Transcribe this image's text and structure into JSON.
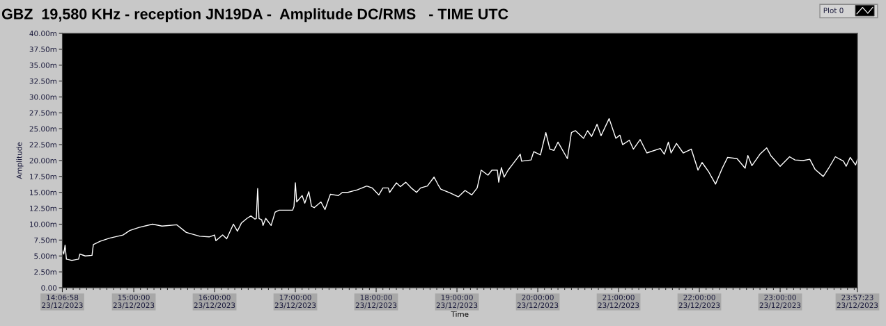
{
  "chart_data": {
    "type": "line",
    "title": "GBZ  19,580 KHz - reception JN19DA -  Amplitude DC/RMS   - TIME UTC",
    "xlabel": "Time",
    "ylabel": "Amplitude",
    "legend": "top right",
    "xlim": [
      "2023-12-23T14:06:58",
      "2023-12-23T23:57:23"
    ],
    "xticks": [
      {
        "value": "2023-12-23T14:06:58",
        "label": "14:06:58\n23/12/2023"
      },
      {
        "value": "2023-12-23T15:00",
        "label": "15:00:00\n23/12/2023"
      },
      {
        "value": "2023-12-23T16:00",
        "label": "16:00:00\n23/12/2023"
      },
      {
        "value": "2023-12-23T17:00",
        "label": "17:00:00\n23/12/2023"
      },
      {
        "value": "2023-12-23T18:00",
        "label": "18:00:00\n23/12/2023"
      },
      {
        "value": "2023-12-23T19:00",
        "label": "19:00:00\n23/12/2023"
      },
      {
        "value": "2023-12-23T20:00",
        "label": "20:00:00\n23/12/2023"
      },
      {
        "value": "2023-12-23T21:00",
        "label": "21:00:00\n23/12/2023"
      },
      {
        "value": "2023-12-23T22:00",
        "label": "22:00:00\n23/12/2023"
      },
      {
        "value": "2023-12-23T23:00",
        "label": "23:00:00\n23/12/2023"
      },
      {
        "value": "2023-12-23T23:57:23",
        "label": "23:57:23\n23/12/2023"
      },
      {
        "value": "2023-12-23T14:10",
        "label": null
      },
      {
        "value": "2023-12-23T14:15",
        "label": null
      },
      {
        "value": "2023-12-23T14:20",
        "label": null
      },
      {
        "value": "2023-12-23T14:25",
        "label": null
      },
      {
        "value": "2023-12-23T14:30",
        "label": null
      },
      {
        "value": "2023-12-23T14:35",
        "label": null
      },
      {
        "value": "2023-12-23T14:40",
        "label": null
      },
      {
        "value": "2023-12-23T14:45",
        "label": null
      },
      {
        "value": "2023-12-23T14:50",
        "label": null
      },
      {
        "value": "2023-12-23T14:55",
        "label": null
      },
      {
        "value": "2023-12-23T15:05",
        "label": null
      },
      {
        "value": "2023-12-23T15:10",
        "label": null
      },
      {
        "value": "2023-12-23T15:15",
        "label": null
      },
      {
        "value": "2023-12-23T15:20",
        "label": null
      },
      {
        "value": "2023-12-23T15:25",
        "label": null
      },
      {
        "value": "2023-12-23T15:30",
        "label": null
      },
      {
        "value": "2023-12-23T15:35",
        "label": null
      },
      {
        "value": "2023-12-23T15:40",
        "label": null
      },
      {
        "value": "2023-12-23T15:45",
        "label": null
      },
      {
        "value": "2023-12-23T15:50",
        "label": null
      },
      {
        "value": "2023-12-23T15:55",
        "label": null
      },
      {
        "value": "2023-12-23T16:05",
        "label": null
      },
      {
        "value": "2023-12-23T16:10",
        "label": null
      },
      {
        "value": "2023-12-23T16:15",
        "label": null
      },
      {
        "value": "2023-12-23T16:20",
        "label": null
      },
      {
        "value": "2023-12-23T16:25",
        "label": null
      },
      {
        "value": "2023-12-23T16:30",
        "label": null
      },
      {
        "value": "2023-12-23T16:35",
        "label": null
      },
      {
        "value": "2023-12-23T16:40",
        "label": null
      },
      {
        "value": "2023-12-23T16:45",
        "label": null
      },
      {
        "value": "2023-12-23T16:50",
        "label": null
      },
      {
        "value": "2023-12-23T16:55",
        "label": null
      },
      {
        "value": "2023-12-23T17:05",
        "label": null
      },
      {
        "value": "2023-12-23T17:10",
        "label": null
      },
      {
        "value": "2023-12-23T17:15",
        "label": null
      },
      {
        "value": "2023-12-23T17:20",
        "label": null
      },
      {
        "value": "2023-12-23T17:25",
        "label": null
      },
      {
        "value": "2023-12-23T17:30",
        "label": null
      },
      {
        "value": "2023-12-23T17:35",
        "label": null
      },
      {
        "value": "2023-12-23T17:40",
        "label": null
      },
      {
        "value": "2023-12-23T17:45",
        "label": null
      },
      {
        "value": "2023-12-23T17:50",
        "label": null
      },
      {
        "value": "2023-12-23T17:55",
        "label": null
      },
      {
        "value": "2023-12-23T18:05",
        "label": null
      },
      {
        "value": "2023-12-23T18:10",
        "label": null
      },
      {
        "value": "2023-12-23T18:15",
        "label": null
      },
      {
        "value": "2023-12-23T18:20",
        "label": null
      },
      {
        "value": "2023-12-23T18:25",
        "label": null
      },
      {
        "value": "2023-12-23T18:30",
        "label": null
      },
      {
        "value": "2023-12-23T18:35",
        "label": null
      },
      {
        "value": "2023-12-23T18:40",
        "label": null
      },
      {
        "value": "2023-12-23T18:45",
        "label": null
      },
      {
        "value": "2023-12-23T18:50",
        "label": null
      },
      {
        "value": "2023-12-23T18:55",
        "label": null
      },
      {
        "value": "2023-12-23T19:05",
        "label": null
      },
      {
        "value": "2023-12-23T19:10",
        "label": null
      },
      {
        "value": "2023-12-23T19:15",
        "label": null
      },
      {
        "value": "2023-12-23T19:20",
        "label": null
      },
      {
        "value": "2023-12-23T19:25",
        "label": null
      },
      {
        "value": "2023-12-23T19:30",
        "label": null
      },
      {
        "value": "2023-12-23T19:35",
        "label": null
      },
      {
        "value": "2023-12-23T19:40",
        "label": null
      },
      {
        "value": "2023-12-23T19:45",
        "label": null
      },
      {
        "value": "2023-12-23T19:50",
        "label": null
      },
      {
        "value": "2023-12-23T19:55",
        "label": null
      },
      {
        "value": "2023-12-23T20:05",
        "label": null
      },
      {
        "value": "2023-12-23T20:10",
        "label": null
      },
      {
        "value": "2023-12-23T20:15",
        "label": null
      },
      {
        "value": "2023-12-23T20:20",
        "label": null
      },
      {
        "value": "2023-12-23T20:25",
        "label": null
      },
      {
        "value": "2023-12-23T20:30",
        "label": null
      },
      {
        "value": "2023-12-23T20:35",
        "label": null
      },
      {
        "value": "2023-12-23T20:40",
        "label": null
      },
      {
        "value": "2023-12-23T20:45",
        "label": null
      },
      {
        "value": "2023-12-23T20:50",
        "label": null
      },
      {
        "value": "2023-12-23T20:55",
        "label": null
      },
      {
        "value": "2023-12-23T21:05",
        "label": null
      },
      {
        "value": "2023-12-23T21:10",
        "label": null
      },
      {
        "value": "2023-12-23T21:15",
        "label": null
      },
      {
        "value": "2023-12-23T21:20",
        "label": null
      },
      {
        "value": "2023-12-23T21:25",
        "label": null
      },
      {
        "value": "2023-12-23T21:30",
        "label": null
      },
      {
        "value": "2023-12-23T21:35",
        "label": null
      },
      {
        "value": "2023-12-23T21:40",
        "label": null
      },
      {
        "value": "2023-12-23T21:45",
        "label": null
      },
      {
        "value": "2023-12-23T21:50",
        "label": null
      },
      {
        "value": "2023-12-23T21:55",
        "label": null
      },
      {
        "value": "2023-12-23T22:05",
        "label": null
      },
      {
        "value": "2023-12-23T22:10",
        "label": null
      },
      {
        "value": "2023-12-23T22:15",
        "label": null
      },
      {
        "value": "2023-12-23T22:20",
        "label": null
      },
      {
        "value": "2023-12-23T22:25",
        "label": null
      },
      {
        "value": "2023-12-23T22:30",
        "label": null
      },
      {
        "value": "2023-12-23T22:35",
        "label": null
      },
      {
        "value": "2023-12-23T22:40",
        "label": null
      },
      {
        "value": "2023-12-23T22:45",
        "label": null
      },
      {
        "value": "2023-12-23T22:50",
        "label": null
      },
      {
        "value": "2023-12-23T22:55",
        "label": null
      },
      {
        "value": "2023-12-23T23:05",
        "label": null
      },
      {
        "value": "2023-12-23T23:10",
        "label": null
      },
      {
        "value": "2023-12-23T23:15",
        "label": null
      },
      {
        "value": "2023-12-23T23:20",
        "label": null
      },
      {
        "value": "2023-12-23T23:25",
        "label": null
      },
      {
        "value": "2023-12-23T23:30",
        "label": null
      },
      {
        "value": "2023-12-23T23:35",
        "label": null
      },
      {
        "value": "2023-12-23T23:40",
        "label": null
      },
      {
        "value": "2023-12-23T23:45",
        "label": null
      },
      {
        "value": "2023-12-23T23:50",
        "label": null
      },
      {
        "value": "2023-12-23T23:55",
        "label": null
      }
    ],
    "ylim": [
      0,
      40
    ],
    "yticks": [
      {
        "value": 0,
        "label": "0.00"
      },
      {
        "value": 2.5,
        "label": "2.50m"
      },
      {
        "value": 5,
        "label": "5.00m"
      },
      {
        "value": 7.5,
        "label": "7.50m"
      },
      {
        "value": 10,
        "label": "10.00m"
      },
      {
        "value": 12.5,
        "label": "12.50m"
      },
      {
        "value": 15,
        "label": "15.00m"
      },
      {
        "value": 17.5,
        "label": "17.50m"
      },
      {
        "value": 20,
        "label": "20.00m"
      },
      {
        "value": 22.5,
        "label": "22.50m"
      },
      {
        "value": 25,
        "label": "25.00m"
      },
      {
        "value": 27.5,
        "label": "27.50m"
      },
      {
        "value": 30,
        "label": "30.00m"
      },
      {
        "value": 32.5,
        "label": "32.50m"
      },
      {
        "value": 35,
        "label": "35.00m"
      },
      {
        "value": 37.5,
        "label": "37.50m"
      },
      {
        "value": 40,
        "label": "40.00m"
      }
    ],
    "x": [
      "2023-12-23T14:06:58",
      "2023-12-23T14:08",
      "2023-12-23T14:09",
      "2023-12-23T14:10",
      "2023-12-23T14:14",
      "2023-12-23T14:19",
      "2023-12-23T14:20",
      "2023-12-23T14:24",
      "2023-12-23T14:29",
      "2023-12-23T14:30",
      "2023-12-23T14:35",
      "2023-12-23T14:42",
      "2023-12-23T14:52",
      "2023-12-23T14:57",
      "2023-12-23T15:04",
      "2023-12-23T15:14",
      "2023-12-23T15:21",
      "2023-12-23T15:32",
      "2023-12-23T15:39",
      "2023-12-23T15:49",
      "2023-12-23T15:56",
      "2023-12-23T16:00",
      "2023-12-23T16:01",
      "2023-12-23T16:06",
      "2023-12-23T16:09",
      "2023-12-23T16:14",
      "2023-12-23T16:17",
      "2023-12-23T16:20",
      "2023-12-23T16:24",
      "2023-12-23T16:27",
      "2023-12-23T16:30",
      "2023-12-23T16:31",
      "2023-12-23T16:32",
      "2023-12-23T16:33",
      "2023-12-23T16:35",
      "2023-12-23T16:36",
      "2023-12-23T16:38",
      "2023-12-23T16:42",
      "2023-12-23T16:45",
      "2023-12-23T16:48",
      "2023-12-23T16:58",
      "2023-12-23T16:59",
      "2023-12-23T17:00",
      "2023-12-23T17:01",
      "2023-12-23T17:05",
      "2023-12-23T17:07",
      "2023-12-23T17:10",
      "2023-12-23T17:12",
      "2023-12-23T17:14",
      "2023-12-23T17:19",
      "2023-12-23T17:22",
      "2023-12-23T17:26",
      "2023-12-23T17:32",
      "2023-12-23T17:35",
      "2023-12-23T17:39",
      "2023-12-23T17:46",
      "2023-12-23T17:53",
      "2023-12-23T17:57",
      "2023-12-23T18:02",
      "2023-12-23T18:05",
      "2023-12-23T18:09",
      "2023-12-23T18:10",
      "2023-12-23T18:15",
      "2023-12-23T18:18",
      "2023-12-23T18:22",
      "2023-12-23T18:26",
      "2023-12-23T18:30",
      "2023-12-23T18:33",
      "2023-12-23T18:38",
      "2023-12-23T18:43",
      "2023-12-23T18:46",
      "2023-12-23T18:48",
      "2023-12-23T18:55",
      "2023-12-23T19:01",
      "2023-12-23T19:06",
      "2023-12-23T19:11",
      "2023-12-23T19:15",
      "2023-12-23T19:18",
      "2023-12-23T19:23",
      "2023-12-23T19:26",
      "2023-12-23T19:30",
      "2023-12-23T19:31",
      "2023-12-23T19:33",
      "2023-12-23T19:35",
      "2023-12-23T19:38",
      "2023-12-23T19:42",
      "2023-12-23T19:47",
      "2023-12-23T19:48",
      "2023-12-23T19:55",
      "2023-12-23T19:57",
      "2023-12-23T20:02",
      "2023-12-23T20:06",
      "2023-12-23T20:09",
      "2023-12-23T20:12",
      "2023-12-23T20:15",
      "2023-12-23T20:22",
      "2023-12-23T20:25",
      "2023-12-23T20:28",
      "2023-12-23T20:34",
      "2023-12-23T20:37",
      "2023-12-23T20:40",
      "2023-12-23T20:44",
      "2023-12-23T20:47",
      "2023-12-23T20:53",
      "2023-12-23T20:58",
      "2023-12-23T21:01",
      "2023-12-23T21:03",
      "2023-12-23T21:08",
      "2023-12-23T21:11",
      "2023-12-23T21:16",
      "2023-12-23T21:21",
      "2023-12-23T21:31",
      "2023-12-23T21:34",
      "2023-12-23T21:37",
      "2023-12-23T21:39",
      "2023-12-23T21:43",
      "2023-12-23T21:48",
      "2023-12-23T21:54",
      "2023-12-23T21:59",
      "2023-12-23T22:02",
      "2023-12-23T22:07",
      "2023-12-23T22:12",
      "2023-12-23T22:17",
      "2023-12-23T22:21",
      "2023-12-23T22:28",
      "2023-12-23T22:34",
      "2023-12-23T22:36",
      "2023-12-23T22:39",
      "2023-12-23T22:45",
      "2023-12-23T22:50",
      "2023-12-23T22:53",
      "2023-12-23T23:00",
      "2023-12-23T23:07",
      "2023-12-23T23:11",
      "2023-12-23T23:17",
      "2023-12-23T23:22",
      "2023-12-23T23:26",
      "2023-12-23T23:32",
      "2023-12-23T23:36",
      "2023-12-23T23:41",
      "2023-12-23T23:47",
      "2023-12-23T23:49",
      "2023-12-23T23:52",
      "2023-12-23T23:56",
      "2023-12-23T23:57:23"
    ],
    "series": [
      {
        "name": "Plot 0",
        "color": "#ffffff",
        "values": [
          5.9,
          5.3,
          6.7,
          4.5,
          4.3,
          4.5,
          5.3,
          5.0,
          5.1,
          6.8,
          7.3,
          7.8,
          8.3,
          9.0,
          9.5,
          10.0,
          9.7,
          9.9,
          8.7,
          8.1,
          8.0,
          8.3,
          7.4,
          8.3,
          7.7,
          10.0,
          8.9,
          10.2,
          10.9,
          11.3,
          10.8,
          10.9,
          15.6,
          10.9,
          10.7,
          9.8,
          10.9,
          9.8,
          11.9,
          12.2,
          12.2,
          12.8,
          16.5,
          13.5,
          14.5,
          13.3,
          15.1,
          12.8,
          12.6,
          13.5,
          12.3,
          14.7,
          14.5,
          15.0,
          15.0,
          15.4,
          16.0,
          15.7,
          14.6,
          15.7,
          15.7,
          15.0,
          16.5,
          15.9,
          16.6,
          15.7,
          15.0,
          15.7,
          16.0,
          17.4,
          16.2,
          15.5,
          14.9,
          14.3,
          15.3,
          14.6,
          15.7,
          18.5,
          17.7,
          18.5,
          18.5,
          16.6,
          18.9,
          17.4,
          18.5,
          19.6,
          21.0,
          19.9,
          20.1,
          21.4,
          20.9,
          24.4,
          21.8,
          21.6,
          22.9,
          20.3,
          24.4,
          24.7,
          23.5,
          24.7,
          23.8,
          25.7,
          23.9,
          26.6,
          23.5,
          24.0,
          22.5,
          23.2,
          21.8,
          23.3,
          21.2,
          21.9,
          21.0,
          22.9,
          21.2,
          22.7,
          21.2,
          21.8,
          18.5,
          19.7,
          18.2,
          16.3,
          18.8,
          20.5,
          20.3,
          18.8,
          20.8,
          19.2,
          21.0,
          22.0,
          20.8,
          19.1,
          20.6,
          20.1,
          20.0,
          20.2,
          18.6,
          17.5,
          18.8,
          20.6,
          19.9,
          19.1,
          20.5,
          19.3,
          20.2
        ]
      }
    ]
  }
}
